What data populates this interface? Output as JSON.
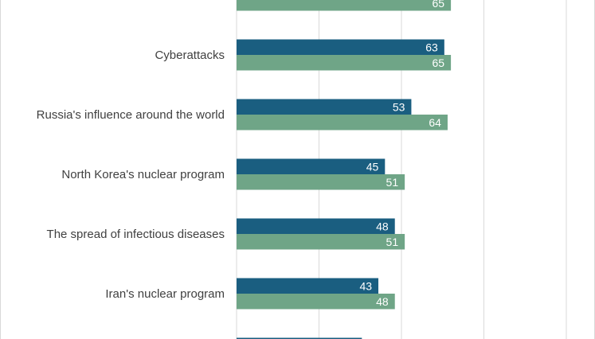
{
  "chart_data": {
    "type": "bar",
    "orientation": "horizontal",
    "xlim": [
      0,
      100
    ],
    "xticks": [
      0,
      25,
      50,
      75,
      100
    ],
    "grid": true,
    "categories": [
      "",
      "Cyberattacks",
      "Russia's influence around the world",
      "North Korea's nuclear program",
      "The spread of infectious diseases",
      "Iran's nuclear program",
      ""
    ],
    "series": [
      {
        "color": "#1a5e80",
        "values": [
          null,
          63,
          53,
          45,
          48,
          43,
          38
        ]
      },
      {
        "color": "#6fa587",
        "values": [
          65,
          65,
          64,
          51,
          51,
          48,
          null
        ]
      }
    ],
    "data_labels": [
      [
        null,
        "63",
        "53",
        "45",
        "48",
        "43",
        null
      ],
      [
        "65",
        "65",
        "64",
        "51",
        "51",
        "48",
        null
      ]
    ]
  }
}
